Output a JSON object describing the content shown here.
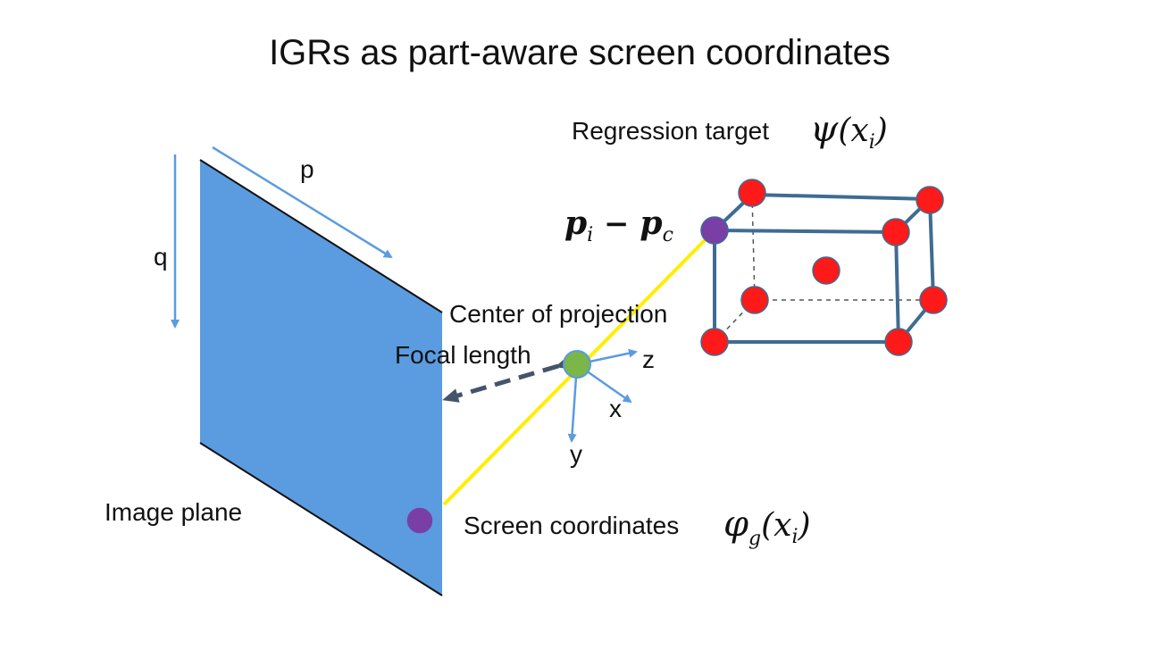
{
  "title": "IGRs as part-aware screen coordinates",
  "labels": {
    "p_axis": "p",
    "q_axis": "q",
    "center_of_projection": "Center of projection",
    "focal_length": "Focal length",
    "image_plane": "Image plane",
    "axis_z": "z",
    "axis_x": "x",
    "axis_y": "y",
    "regression_target": "Regression target",
    "screen_coordinates": "Screen coordinates"
  },
  "math": {
    "psi_symbol": "ψ",
    "psi_arg": "(x",
    "psi_sub": "i",
    "psi_close": ")",
    "phi_symbol": "φ",
    "phi_sub_g": "g",
    "phi_arg": "(x",
    "phi_sub": "i",
    "phi_close": ")",
    "pi_p": "p",
    "pi_sub": "i",
    "minus": " − ",
    "pc_p": "p",
    "pc_sub": "c"
  },
  "colors": {
    "plane": "#5b9bdf",
    "axis_arrow": "#5b9bdf",
    "box_edge": "#3e6c93",
    "keypoint": "#ff1a1a",
    "purple_point": "#7a3fa6",
    "camera_center": "#7ab648",
    "ray": "#ffee00",
    "focal_arrow": "#44546a"
  }
}
